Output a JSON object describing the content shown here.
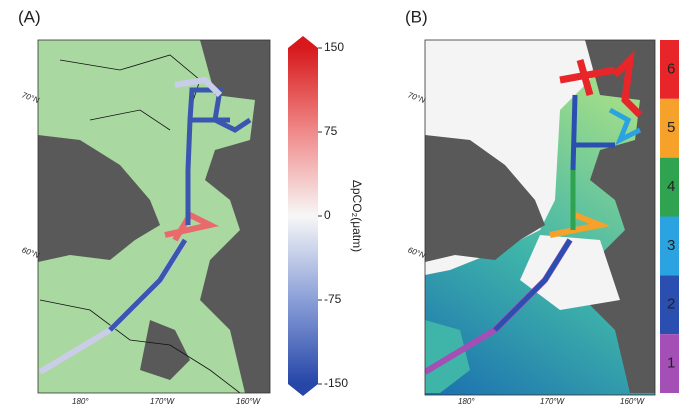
{
  "panels": [
    {
      "label": "(A)",
      "lat_labels": [
        "70°N",
        "60°N"
      ],
      "lon_labels": [
        "180°",
        "170°W",
        "160°W"
      ]
    },
    {
      "label": "(B)",
      "lat_labels": [
        "70°N",
        "60°N"
      ],
      "lon_labels": [
        "180°",
        "170°W",
        "160°W"
      ]
    }
  ],
  "colorbar_a": {
    "title": "ΔpCO₂(μatm)",
    "lim": [
      -150,
      150
    ],
    "ticks": [
      150,
      75,
      0,
      -75,
      -150
    ]
  },
  "colorbar_b": {
    "classes": [
      {
        "label": 6,
        "color": "#e8262a"
      },
      {
        "label": 5,
        "color": "#f5a12a"
      },
      {
        "label": 4,
        "color": "#2fa34f"
      },
      {
        "label": 3,
        "color": "#2aa3e0"
      },
      {
        "label": 2,
        "color": "#2b4fb0"
      },
      {
        "label": 1,
        "color": "#a34fb5"
      }
    ]
  }
}
